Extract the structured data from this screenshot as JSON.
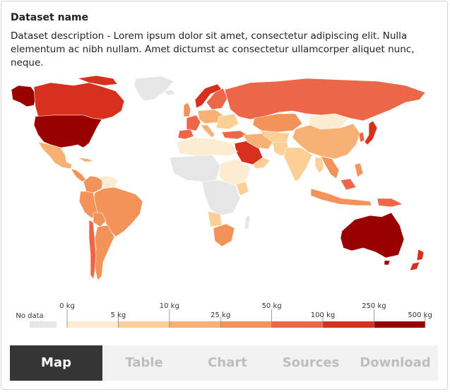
{
  "dataset": {
    "title": "Dataset name",
    "description": "Dataset description - Lorem ipsum dolor sit amet, consectetur adipiscing elit. Nulla elementum ac nibh nullam. Amet dictumst ac consectetur ullamcorper aliquet nunc, neque."
  },
  "legend": {
    "no_data_label": "No data",
    "no_data_color": "#e6e6e6",
    "tick_labels": [
      "0 kg",
      "5 kg",
      "10 kg",
      "25 kg",
      "50 kg",
      "100 kg",
      "250 kg",
      "500 kg"
    ],
    "bins": [
      {
        "color": "#fdebd2"
      },
      {
        "color": "#fbcf96"
      },
      {
        "color": "#f7b173"
      },
      {
        "color": "#f39359"
      },
      {
        "color": "#ec6748"
      },
      {
        "color": "#d7301f"
      },
      {
        "color": "#990000"
      }
    ]
  },
  "map": {
    "ocean_color": "#ffffff",
    "border_color": "#ffffff"
  },
  "tabs": [
    {
      "label": "Map",
      "active": true
    },
    {
      "label": "Table",
      "active": false
    },
    {
      "label": "Chart",
      "active": false
    },
    {
      "label": "Sources",
      "active": false
    },
    {
      "label": "Download",
      "active": false
    }
  ]
}
